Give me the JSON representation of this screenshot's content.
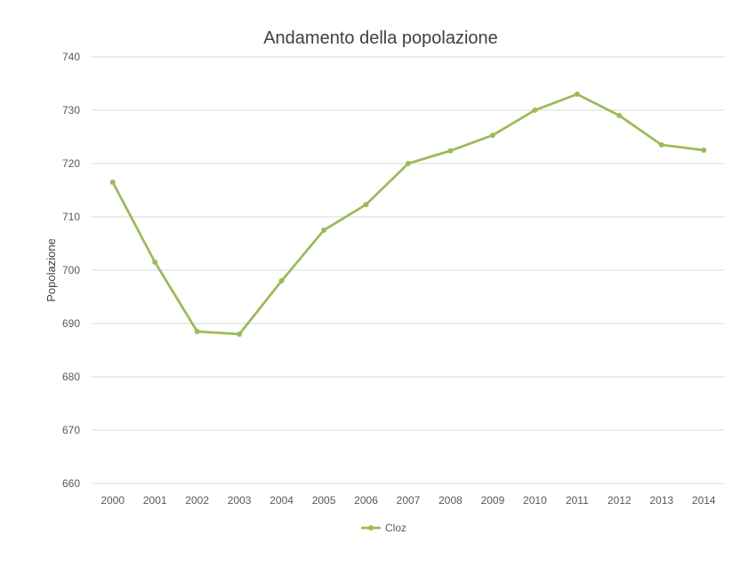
{
  "chart_data": {
    "type": "line",
    "title": "Andamento della popolazione",
    "xlabel": "",
    "ylabel": "Popolazione",
    "categories": [
      "2000",
      "2001",
      "2002",
      "2003",
      "2004",
      "2005",
      "2006",
      "2007",
      "2008",
      "2009",
      "2010",
      "2011",
      "2012",
      "2013",
      "2014"
    ],
    "series": [
      {
        "name": "Cloz",
        "color": "#9bbb59",
        "values": [
          716.5,
          701.5,
          688.5,
          688,
          698,
          707.5,
          712.3,
          720,
          722.4,
          725.3,
          730,
          733,
          729,
          723.5,
          722.5
        ]
      }
    ],
    "ylim": [
      660,
      740
    ],
    "yticks": [
      "660",
      "670",
      "680",
      "690",
      "700",
      "710",
      "720",
      "730",
      "740"
    ],
    "grid": true,
    "legend_position": "bottom"
  }
}
